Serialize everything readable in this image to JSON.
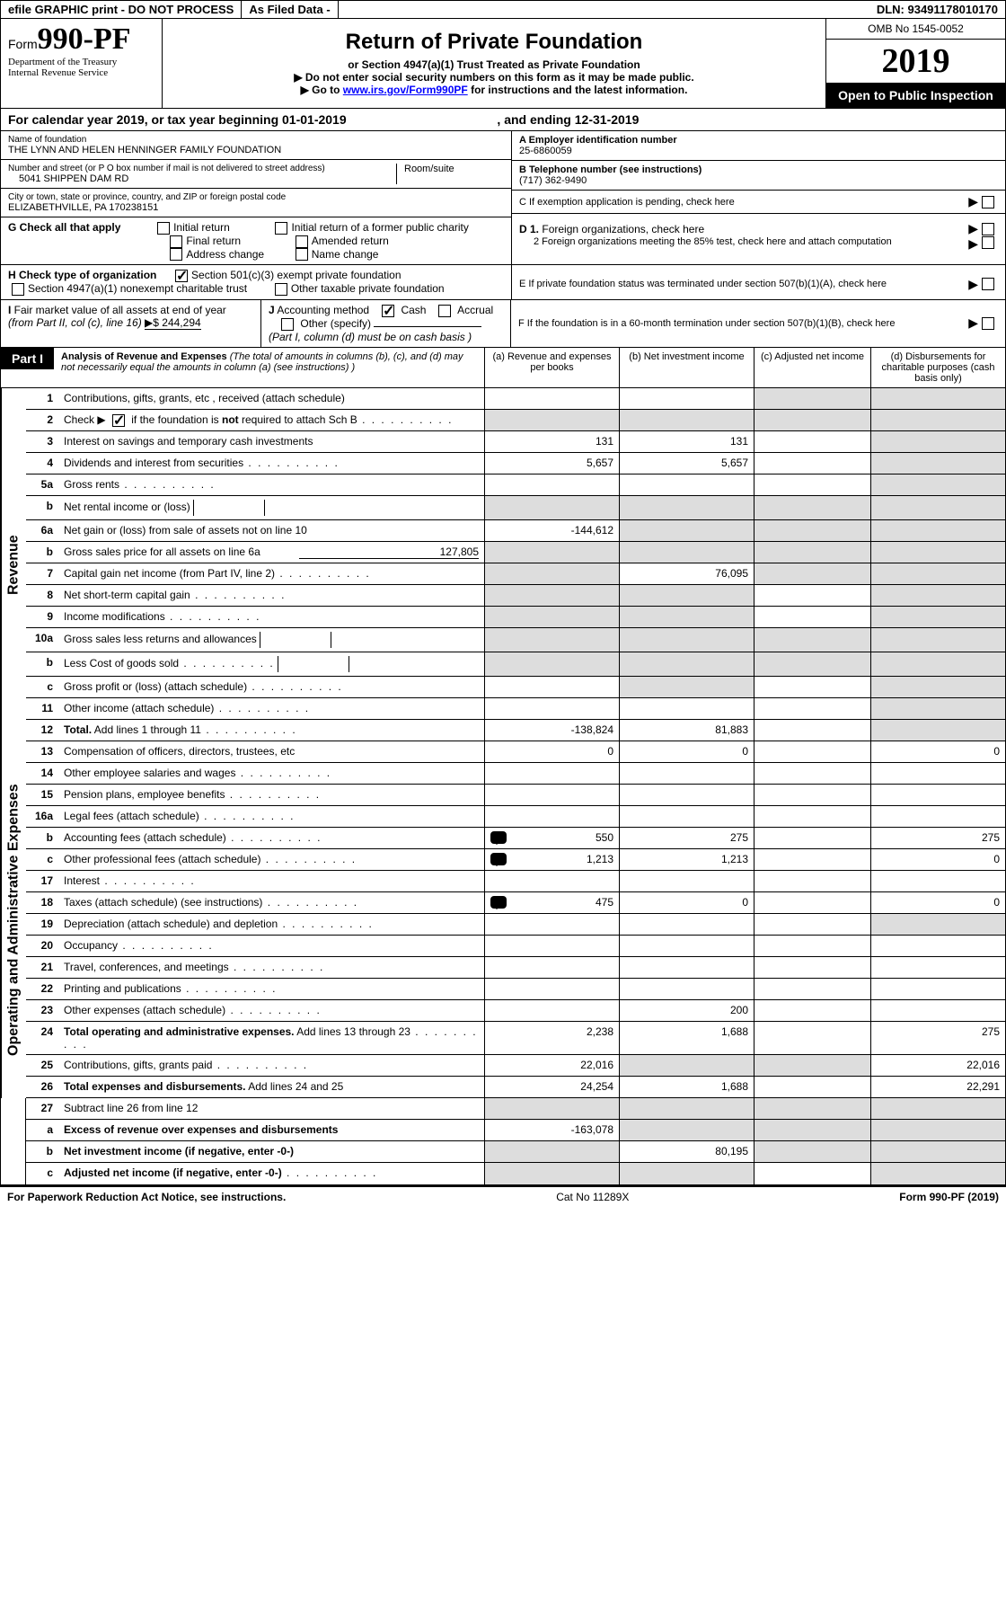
{
  "topBar": {
    "efile": "efile GRAPHIC print - DO NOT PROCESS",
    "asFiledLabel": "As Filed Data -",
    "asFiledValue": "",
    "dlnLabel": "DLN:",
    "dln": "93491178010170"
  },
  "header": {
    "formPrefix": "Form",
    "formNum": "990-PF",
    "dept": "Department of the Treasury",
    "irs": "Internal Revenue Service",
    "title": "Return of Private Foundation",
    "subtitle": "or Section 4947(a)(1) Trust Treated as Private Foundation",
    "warn1": "▶ Do not enter social security numbers on this form as it may be made public.",
    "warn2pre": "▶ Go to ",
    "warn2link": "www.irs.gov/Form990PF",
    "warn2post": " for instructions and the latest information.",
    "omb": "OMB No 1545-0052",
    "year": "2019",
    "openPublic": "Open to Public Inspection"
  },
  "calendar": {
    "pre": "For calendar year 2019, or tax year beginning ",
    "begin": "01-01-2019",
    "mid": " , and ending ",
    "end": "12-31-2019"
  },
  "info": {
    "nameLabel": "Name of foundation",
    "name": "THE LYNN AND HELEN HENNINGER FAMILY FOUNDATION",
    "addrLabel": "Number and street (or P O  box number if mail is not delivered to street address)",
    "addr": "5041 SHIPPEN DAM RD",
    "roomLabel": "Room/suite",
    "cityLabel": "City or town, state or province, country, and ZIP or foreign postal code",
    "city": "ELIZABETHVILLE, PA  170238151",
    "einLabel": "A Employer identification number",
    "ein": "25-6860059",
    "telLabel": "B Telephone number (see instructions)",
    "tel": "(717) 362-9490",
    "exemptLabel": "C If exemption application is pending, check here"
  },
  "checks": {
    "gLabel": "G Check all that apply",
    "g": [
      "Initial return",
      "Initial return of a former public charity",
      "Final return",
      "Amended return",
      "Address change",
      "Name change"
    ],
    "hLabel": "H Check type of organization",
    "h501": "Section 501(c)(3) exempt private foundation",
    "h4947": "Section 4947(a)(1) nonexempt charitable trust",
    "hOther": "Other taxable private foundation",
    "d1": "D 1. Foreign organizations, check here",
    "d2": "2  Foreign organizations meeting the 85% test, check here and attach computation",
    "eLabel": "E  If private foundation status was terminated under section 507(b)(1)(A), check here",
    "fLabel": "F  If the foundation is in a 60-month termination under section 507(b)(1)(B), check here"
  },
  "fmv": {
    "iLabel": "I Fair market value of all assets at end of year (from Part II, col  (c), line 16) ",
    "iVal": "▶$  244,294",
    "jLabel": "J Accounting method",
    "jCash": "Cash",
    "jAccrual": "Accrual",
    "jOther": "Other (specify)",
    "jNote": "(Part I, column (d) must be on cash basis )"
  },
  "part1": {
    "label": "Part I",
    "title": "Analysis of Revenue and Expenses",
    "titleNote": " (The total of amounts in columns (b), (c), and (d) may not necessarily equal the amounts in column (a) (see instructions) )",
    "colA": "(a)  Revenue and expenses per books",
    "colB": "(b)  Net investment income",
    "colC": "(c)  Adjusted net income",
    "colD": "(d)  Disbursements for charitable purposes (cash basis only)"
  },
  "sideLabels": {
    "revenue": "Revenue",
    "expenses": "Operating and Administrative Expenses"
  },
  "lines": [
    {
      "num": "1",
      "desc": "Contributions, gifts, grants, etc , received (attach schedule)",
      "a": "",
      "b": "",
      "c": "S",
      "d": "S"
    },
    {
      "num": "2",
      "desc": "Check ▶ ☑ if the foundation is not required to attach Sch  B",
      "dots": true,
      "a": "S",
      "b": "S",
      "c": "S",
      "d": "S",
      "bold_not": true
    },
    {
      "num": "3",
      "desc": "Interest on savings and temporary cash investments",
      "a": "131",
      "b": "131",
      "c": "",
      "d": "S"
    },
    {
      "num": "4",
      "desc": "Dividends and interest from securities",
      "dots": true,
      "a": "5,657",
      "b": "5,657",
      "c": "",
      "d": "S"
    },
    {
      "num": "5a",
      "desc": "Gross rents",
      "dots": true,
      "a": "",
      "b": "",
      "c": "",
      "d": "S"
    },
    {
      "num": "b",
      "desc": "Net rental income or (loss)",
      "a": "S",
      "b": "S",
      "c": "S",
      "d": "S",
      "inline_box": true
    },
    {
      "num": "6a",
      "desc": "Net gain or (loss) from sale of assets not on line 10",
      "a": "-144,612",
      "b": "S",
      "c": "S",
      "d": "S"
    },
    {
      "num": "b",
      "desc": "Gross sales price for all assets on line 6a",
      "a": "S",
      "b": "S",
      "c": "S",
      "d": "S",
      "inline_val": "127,805"
    },
    {
      "num": "7",
      "desc": "Capital gain net income (from Part IV, line 2)",
      "dots": true,
      "a": "S",
      "b": "76,095",
      "c": "S",
      "d": "S"
    },
    {
      "num": "8",
      "desc": "Net short-term capital gain",
      "dots": true,
      "a": "S",
      "b": "S",
      "c": "",
      "d": "S"
    },
    {
      "num": "9",
      "desc": "Income modifications",
      "dots": true,
      "a": "S",
      "b": "S",
      "c": "",
      "d": "S"
    },
    {
      "num": "10a",
      "desc": "Gross sales less returns and allowances",
      "a": "S",
      "b": "S",
      "c": "S",
      "d": "S",
      "inline_box": true
    },
    {
      "num": "b",
      "desc": "Less  Cost of goods sold",
      "dots": true,
      "a": "S",
      "b": "S",
      "c": "S",
      "d": "S",
      "inline_box": true
    },
    {
      "num": "c",
      "desc": "Gross profit or (loss) (attach schedule)",
      "dots": true,
      "a": "",
      "b": "S",
      "c": "",
      "d": "S"
    },
    {
      "num": "11",
      "desc": "Other income (attach schedule)",
      "dots": true,
      "a": "",
      "b": "",
      "c": "",
      "d": "S"
    },
    {
      "num": "12",
      "desc": "Total. Add lines 1 through 11",
      "dots": true,
      "bold": true,
      "a": "-138,824",
      "b": "81,883",
      "c": "",
      "d": "S"
    }
  ],
  "expLines": [
    {
      "num": "13",
      "desc": "Compensation of officers, directors, trustees, etc",
      "a": "0",
      "b": "0",
      "c": "",
      "d": "0"
    },
    {
      "num": "14",
      "desc": "Other employee salaries and wages",
      "dots": true,
      "a": "",
      "b": "",
      "c": "",
      "d": ""
    },
    {
      "num": "15",
      "desc": "Pension plans, employee benefits",
      "dots": true,
      "a": "",
      "b": "",
      "c": "",
      "d": ""
    },
    {
      "num": "16a",
      "desc": "Legal fees (attach schedule)",
      "dots": true,
      "a": "",
      "b": "",
      "c": "",
      "d": ""
    },
    {
      "num": "b",
      "desc": "Accounting fees (attach schedule)",
      "dots": true,
      "icon": true,
      "a": "550",
      "b": "275",
      "c": "",
      "d": "275"
    },
    {
      "num": "c",
      "desc": "Other professional fees (attach schedule)",
      "dots": true,
      "icon": true,
      "a": "1,213",
      "b": "1,213",
      "c": "",
      "d": "0"
    },
    {
      "num": "17",
      "desc": "Interest",
      "dots": true,
      "a": "",
      "b": "",
      "c": "",
      "d": ""
    },
    {
      "num": "18",
      "desc": "Taxes (attach schedule) (see instructions)",
      "dots": true,
      "icon": true,
      "a": "475",
      "b": "0",
      "c": "",
      "d": "0"
    },
    {
      "num": "19",
      "desc": "Depreciation (attach schedule) and depletion",
      "dots": true,
      "a": "",
      "b": "",
      "c": "",
      "d": "S"
    },
    {
      "num": "20",
      "desc": "Occupancy",
      "dots": true,
      "a": "",
      "b": "",
      "c": "",
      "d": ""
    },
    {
      "num": "21",
      "desc": "Travel, conferences, and meetings",
      "dots": true,
      "a": "",
      "b": "",
      "c": "",
      "d": ""
    },
    {
      "num": "22",
      "desc": "Printing and publications",
      "dots": true,
      "a": "",
      "b": "",
      "c": "",
      "d": ""
    },
    {
      "num": "23",
      "desc": "Other expenses (attach schedule)",
      "dots": true,
      "a": "",
      "b": "200",
      "c": "",
      "d": ""
    },
    {
      "num": "24",
      "desc": "Total operating and administrative expenses. Add lines 13 through 23",
      "dots": true,
      "bold": true,
      "a": "2,238",
      "b": "1,688",
      "c": "",
      "d": "275"
    },
    {
      "num": "25",
      "desc": "Contributions, gifts, grants paid",
      "dots": true,
      "a": "22,016",
      "b": "S",
      "c": "S",
      "d": "22,016"
    },
    {
      "num": "26",
      "desc": "Total expenses and disbursements. Add lines 24 and 25",
      "bold": true,
      "a": "24,254",
      "b": "1,688",
      "c": "",
      "d": "22,291"
    }
  ],
  "bottomLines": [
    {
      "num": "27",
      "desc": "Subtract line 26 from line 12",
      "a": "S",
      "b": "S",
      "c": "S",
      "d": "S"
    },
    {
      "num": "a",
      "desc": "Excess of revenue over expenses and disbursements",
      "bold": true,
      "a": "-163,078",
      "b": "S",
      "c": "S",
      "d": "S"
    },
    {
      "num": "b",
      "desc": "Net investment income (if negative, enter -0-)",
      "bold": true,
      "a": "S",
      "b": "80,195",
      "c": "S",
      "d": "S"
    },
    {
      "num": "c",
      "desc": "Adjusted net income (if negative, enter -0-)",
      "bold": true,
      "dots": true,
      "a": "S",
      "b": "S",
      "c": "",
      "d": "S"
    }
  ],
  "footer": {
    "left": "For Paperwork Reduction Act Notice, see instructions.",
    "center": "Cat  No  11289X",
    "right": "Form 990-PF (2019)"
  },
  "colors": {
    "shaded": "#dddddd",
    "bg": "#ffffff",
    "border": "#000000",
    "link": "#0000ff"
  }
}
